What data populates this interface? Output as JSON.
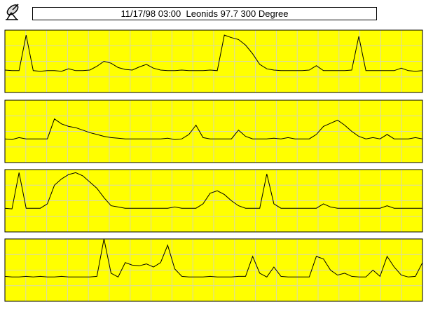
{
  "title": "11/17/98 03:00  Leonids 97.7 300 Degree",
  "chart_data": [
    {
      "type": "line",
      "color": "#000000",
      "background": "#ffff00",
      "grid": true,
      "ylim": [
        0,
        100
      ],
      "values": [
        36,
        35,
        35,
        92,
        35,
        34,
        35,
        35,
        34,
        38,
        35,
        35,
        36,
        42,
        50,
        47,
        40,
        37,
        36,
        41,
        45,
        39,
        36,
        35,
        35,
        36,
        35,
        35,
        35,
        36,
        35,
        92,
        88,
        85,
        76,
        62,
        45,
        38,
        36,
        35,
        35,
        35,
        35,
        36,
        43,
        35,
        35,
        35,
        35,
        36,
        90,
        35,
        35,
        35,
        35,
        35,
        39,
        35,
        34,
        35
      ]
    },
    {
      "type": "line",
      "color": "#000000",
      "background": "#ffff00",
      "grid": true,
      "ylim": [
        0,
        100
      ],
      "values": [
        38,
        37,
        40,
        38,
        38,
        38,
        38,
        70,
        62,
        58,
        56,
        52,
        48,
        45,
        42,
        40,
        39,
        38,
        38,
        38,
        38,
        38,
        38,
        39,
        37,
        38,
        45,
        60,
        40,
        38,
        38,
        38,
        38,
        52,
        42,
        38,
        38,
        38,
        39,
        38,
        40,
        38,
        38,
        38,
        45,
        58,
        63,
        68,
        60,
        50,
        42,
        38,
        40,
        38,
        45,
        38,
        38,
        38,
        40,
        38
      ]
    },
    {
      "type": "line",
      "color": "#000000",
      "background": "#ffff00",
      "grid": true,
      "ylim": [
        0,
        100
      ],
      "values": [
        38,
        37,
        95,
        38,
        38,
        38,
        45,
        75,
        85,
        92,
        95,
        90,
        80,
        70,
        55,
        42,
        40,
        38,
        38,
        38,
        38,
        38,
        38,
        38,
        40,
        38,
        38,
        38,
        45,
        62,
        66,
        60,
        50,
        42,
        38,
        38,
        38,
        93,
        45,
        38,
        38,
        38,
        38,
        38,
        38,
        45,
        40,
        38,
        38,
        38,
        38,
        38,
        38,
        38,
        42,
        38,
        38,
        38,
        38,
        38
      ]
    },
    {
      "type": "line",
      "color": "#000000",
      "background": "#ffff00",
      "grid": true,
      "ylim": [
        0,
        100
      ],
      "values": [
        40,
        39,
        39,
        40,
        39,
        40,
        39,
        39,
        40,
        39,
        39,
        39,
        39,
        40,
        100,
        45,
        39,
        62,
        58,
        57,
        60,
        55,
        62,
        90,
        52,
        40,
        39,
        39,
        39,
        40,
        39,
        39,
        39,
        40,
        40,
        72,
        45,
        39,
        55,
        40,
        39,
        39,
        39,
        39,
        72,
        68,
        50,
        42,
        45,
        40,
        39,
        39,
        50,
        40,
        72,
        55,
        42,
        39,
        40,
        62
      ]
    }
  ]
}
